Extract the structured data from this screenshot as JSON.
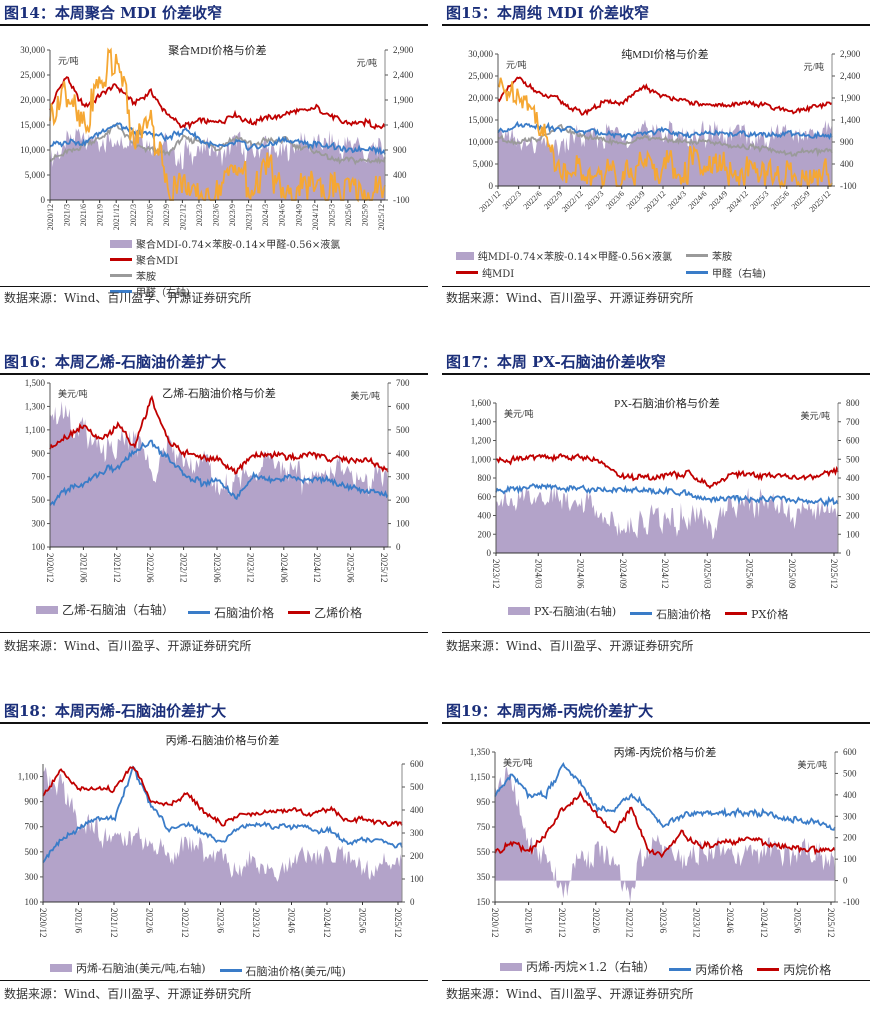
{
  "source_text": "数据来源：Wind、百川盈孚、开源证券研究所",
  "colors": {
    "area": "#b3a3c9",
    "red": "#c00000",
    "blue": "#3a7cc8",
    "gray": "#9a9a9a",
    "orange": "#f5a733",
    "title": "#1b2f7a"
  },
  "panels": [
    {
      "fig_title": "图14：本周聚合 MDI 价差收窄",
      "chart_data": {
        "type": "line",
        "title": "聚合MDI价格与价差",
        "left_unit": "元/吨",
        "right_unit": "元/吨",
        "left_ylim": [
          0,
          30000
        ],
        "left_ticks": [
          "0",
          "5,000",
          "10,000",
          "15,000",
          "20,000",
          "25,000",
          "30,000"
        ],
        "right_ylim": [
          -100,
          2900
        ],
        "right_ticks": [
          "-100",
          "400",
          "900",
          "1,400",
          "1,900",
          "2,400",
          "2,900"
        ],
        "x_ticks": [
          "2020/12",
          "2021/3",
          "2021/6",
          "2021/9",
          "2021/12",
          "2022/3",
          "2022/6",
          "2022/9",
          "2022/12",
          "2023/3",
          "2023/6",
          "2023/9",
          "2023/12",
          "2024/3",
          "2024/6",
          "2024/9",
          "2024/12",
          "2025/3",
          "2025/6",
          "2025/9",
          "2025/12"
        ],
        "x_tick_style": "vertical",
        "series": [
          {
            "name": "聚合MDI-0.74×苯胺-0.14×甲醛-0.56×液氯",
            "kind": "area",
            "axis": "left",
            "color": "#b3a3c9",
            "values": [
              9000,
              10500,
              13000,
              11000,
              12000,
              14000,
              12500,
              10500,
              9000,
              10000,
              9500,
              11000,
              9500,
              11500,
              10000,
              12000,
              11000,
              10500,
              11000,
              9500,
              8500
            ]
          },
          {
            "name": "聚合MDI",
            "kind": "line",
            "axis": "left",
            "color": "#c00000",
            "values": [
              18500,
              25000,
              18500,
              21000,
              23000,
              19500,
              21500,
              17000,
              14500,
              16000,
              15500,
              17000,
              15500,
              16500,
              17000,
              18000,
              18500,
              16500,
              15000,
              15500,
              14300
            ]
          },
          {
            "name": "苯胺",
            "kind": "line",
            "axis": "left",
            "color": "#9a9a9a",
            "values": [
              8500,
              9500,
              11000,
              12000,
              15000,
              11000,
              10000,
              9000,
              12500,
              11500,
              10000,
              12500,
              11000,
              12000,
              12000,
              10500,
              9500,
              8000,
              8000,
              8200,
              8000
            ]
          },
          {
            "name": "甲醛（右轴)",
            "kind": "line",
            "axis": "right",
            "color": "#3a7cc8",
            "values": [
              950,
              1100,
              1050,
              1250,
              1400,
              1250,
              1200,
              1150,
              1300,
              1100,
              950,
              1050,
              950,
              1000,
              1100,
              1050,
              1000,
              950,
              900,
              920,
              880
            ]
          },
          {
            "name": "液氯",
            "kind": "line",
            "axis": "right",
            "color": "#f5a733",
            "values": [
              1800,
              2000,
              1300,
              2200,
              2900,
              900,
              1500,
              300,
              100,
              100,
              80,
              600,
              100,
              600,
              150,
              150,
              100,
              50,
              50,
              50,
              150
            ],
            "in_legend": false
          }
        ],
        "legend_position": "bottom"
      }
    },
    {
      "fig_title": "图15：本周纯 MDI 价差收窄",
      "chart_data": {
        "type": "line",
        "title": "纯MDI价格与价差",
        "left_unit": "元/吨",
        "right_unit": "元/吨",
        "left_ylim": [
          0,
          30000
        ],
        "left_ticks": [
          "0",
          "5,000",
          "10,000",
          "15,000",
          "20,000",
          "25,000",
          "30,000"
        ],
        "right_ylim": [
          -100,
          2900
        ],
        "right_ticks": [
          "-100",
          "400",
          "900",
          "1,400",
          "1,900",
          "2,400",
          "2,900"
        ],
        "x_ticks": [
          "2021/12",
          "2022/3",
          "2022/6",
          "2022/9",
          "2022/12",
          "2023/3",
          "2023/6",
          "2023/9",
          "2023/12",
          "2024/3",
          "2024/6",
          "2024/9",
          "2024/12",
          "2025/3",
          "2025/6",
          "2025/9",
          "2025/12"
        ],
        "x_tick_style": "diagonal",
        "series": [
          {
            "name": "纯MDI-0.74×苯胺-0.14×甲醛-0.56×液氯",
            "kind": "area",
            "axis": "left",
            "color": "#b3a3c9",
            "values": [
              12000,
              9500,
              10500,
              10000,
              11000,
              12000,
              11500,
              13500,
              12000,
              12500,
              11500,
              12000,
              11000,
              11500,
              11000,
              12000,
              13000
            ]
          },
          {
            "name": "纯MDI",
            "kind": "line",
            "axis": "left",
            "color": "#c00000",
            "values": [
              19500,
              24500,
              21000,
              19500,
              16500,
              19000,
              19000,
              22500,
              20500,
              19000,
              18500,
              18500,
              19000,
              18000,
              17000,
              18000,
              18500
            ]
          },
          {
            "name": "苯胺",
            "kind": "line",
            "axis": "left",
            "color": "#9a9a9a",
            "values": [
              11000,
              10000,
              11000,
              13500,
              11000,
              10500,
              9500,
              11000,
              10500,
              10000,
              10500,
              9000,
              9000,
              8500,
              7500,
              7800,
              8000
            ]
          },
          {
            "name": "甲醛（右轴)",
            "kind": "line",
            "axis": "right",
            "color": "#3a7cc8",
            "values": [
              1100,
              1300,
              1250,
              1200,
              1150,
              1100,
              1050,
              1100,
              1150,
              1050,
              1100,
              1100,
              1100,
              1050,
              1100,
              1050,
              1000
            ]
          },
          {
            "name": "液氯",
            "kind": "line",
            "axis": "right",
            "color": "#f5a733",
            "values": [
              2100,
              1800,
              1300,
              200,
              150,
              150,
              150,
              500,
              300,
              400,
              300,
              250,
              200,
              50,
              50,
              50,
              200
            ],
            "in_legend": false
          }
        ],
        "legend_position": "bottom"
      }
    },
    {
      "fig_title": "图16：本周乙烯-石脑油价差扩大",
      "chart_data": {
        "type": "line",
        "title": "乙烯-石脑油价格与价差",
        "left_unit": "美元/吨",
        "right_unit": "美元/吨",
        "left_ylim": [
          100,
          1500
        ],
        "left_ticks": [
          "100",
          "300",
          "500",
          "700",
          "900",
          "1,100",
          "1,300",
          "1,500"
        ],
        "right_ylim": [
          0,
          700
        ],
        "right_ticks": [
          "0",
          "100",
          "200",
          "300",
          "400",
          "500",
          "600",
          "700"
        ],
        "x_ticks": [
          "2020/12",
          "2021/06",
          "2021/12",
          "2022/06",
          "2022/12",
          "2023/06",
          "2023/12",
          "2024/06",
          "2024/12",
          "2025/06",
          "2025/12"
        ],
        "x_tick_style": "vertical",
        "series": [
          {
            "name": "乙烯-石脑油（右轴）",
            "kind": "area",
            "axis": "right",
            "color": "#b3a3c9",
            "values": [
              600,
              550,
              480,
              450,
              400,
              500,
              300,
              450,
              350,
              380,
              250,
              300,
              320,
              350,
              350,
              300,
              330,
              350,
              300,
              280,
              250
            ]
          },
          {
            "name": "石脑油价格",
            "kind": "line",
            "axis": "left",
            "color": "#3a7cc8",
            "values": [
              450,
              600,
              650,
              750,
              780,
              900,
              1000,
              850,
              720,
              650,
              680,
              500,
              700,
              680,
              700,
              670,
              680,
              650,
              600,
              580,
              550
            ]
          },
          {
            "name": "乙烯价格",
            "kind": "line",
            "axis": "left",
            "color": "#c00000",
            "values": [
              950,
              1050,
              1150,
              1000,
              1150,
              950,
              1380,
              1000,
              900,
              880,
              850,
              720,
              880,
              900,
              870,
              880,
              880,
              850,
              850,
              820,
              740
            ]
          }
        ],
        "legend_position": "bottom"
      }
    },
    {
      "fig_title": "图17：本周 PX-石脑油价差收窄",
      "chart_data": {
        "type": "line",
        "title": "PX-石脑油价格与价差",
        "left_unit": "美元/吨",
        "right_unit": "美元/吨",
        "left_ylim": [
          0,
          1600
        ],
        "left_ticks": [
          "0",
          "200",
          "400",
          "600",
          "800",
          "1,000",
          "1,200",
          "1,400",
          "1,600"
        ],
        "right_ylim": [
          0,
          800
        ],
        "right_ticks": [
          "0",
          "100",
          "200",
          "300",
          "400",
          "500",
          "600",
          "700",
          "800"
        ],
        "x_ticks": [
          "2023/12",
          "2024/03",
          "2024/06",
          "2024/09",
          "2024/12",
          "2025/03",
          "2025/06",
          "2025/09",
          "2025/12"
        ],
        "x_tick_style": "vertical",
        "series": [
          {
            "name": "PX-石脑油(右轴)",
            "kind": "area",
            "axis": "right",
            "color": "#b3a3c9",
            "values": [
              290,
              280,
              300,
              290,
              290,
              200,
              160,
              160,
              180,
              180,
              150,
              250,
              280,
              270,
              200,
              230,
              260
            ]
          },
          {
            "name": "石脑油价格",
            "kind": "line",
            "axis": "left",
            "color": "#3a7cc8",
            "values": [
              650,
              690,
              700,
              700,
              690,
              660,
              680,
              660,
              650,
              640,
              560,
              580,
              570,
              580,
              560,
              560,
              540
            ]
          },
          {
            "name": "PX价格",
            "kind": "line",
            "axis": "left",
            "color": "#c00000",
            "values": [
              980,
              1000,
              1020,
              1030,
              1020,
              960,
              800,
              820,
              830,
              850,
              700,
              840,
              830,
              820,
              800,
              820,
              880
            ]
          }
        ],
        "legend_position": "bottom"
      }
    },
    {
      "fig_title": "图18：本周丙烯-石脑油价差扩大",
      "chart_data": {
        "type": "line",
        "title": "丙烯-石脑油价格与价差",
        "left_unit": "",
        "right_unit": "",
        "left_ylim": [
          100,
          1200
        ],
        "left_ticks": [
          "100",
          "300",
          "500",
          "700",
          "900",
          "1,100"
        ],
        "right_ylim": [
          0,
          600
        ],
        "right_ticks": [
          "0",
          "100",
          "200",
          "300",
          "400",
          "500",
          "600"
        ],
        "x_ticks": [
          "2020/12",
          "2021/6",
          "2021/12",
          "2022/6",
          "2022/12",
          "2023/6",
          "2023/12",
          "2024/6",
          "2024/12",
          "2025/6",
          "2025/12"
        ],
        "x_tick_style": "vertical",
        "series": [
          {
            "name": "丙烯-石脑油(美元/吨,右轴)",
            "kind": "area",
            "axis": "right",
            "color": "#b3a3c9",
            "values": [
              560,
              500,
              350,
              300,
              250,
              280,
              230,
              200,
              250,
              220,
              180,
              150,
              180,
              130,
              180,
              190,
              200,
              180,
              130,
              170,
              170
            ]
          },
          {
            "name": "石脑油价格(美元/吨)",
            "kind": "line",
            "axis": "left",
            "color": "#3a7cc8",
            "values": [
              420,
              600,
              680,
              780,
              750,
              1170,
              880,
              680,
              720,
              640,
              580,
              700,
              720,
              700,
              700,
              680,
              660,
              560,
              600,
              580,
              540
            ]
          },
          {
            "name": "丙烯价格",
            "kind": "line",
            "axis": "left",
            "color": "#c00000",
            "values": [
              950,
              1150,
              1000,
              1000,
              1000,
              1200,
              900,
              880,
              960,
              820,
              720,
              800,
              800,
              820,
              840,
              800,
              840,
              750,
              760,
              720,
              730
            ],
            "in_legend": false
          }
        ],
        "legend_position": "bottom"
      }
    },
    {
      "fig_title": "图19：本周丙烯-丙烷价差扩大",
      "chart_data": {
        "type": "line",
        "title": "丙烯-丙烷价格与价差",
        "left_unit": "美元/吨",
        "right_unit": "美元/吨",
        "left_ylim": [
          150,
          1350
        ],
        "left_ticks": [
          "150",
          "350",
          "550",
          "750",
          "950",
          "1,150",
          "1,350"
        ],
        "right_ylim": [
          -100,
          600
        ],
        "right_ticks": [
          "-100",
          "0",
          "100",
          "200",
          "300",
          "400",
          "500",
          "600"
        ],
        "x_ticks": [
          "2020/12",
          "2021/6",
          "2021/12",
          "2022/6",
          "2022/12",
          "2023/6",
          "2023/12",
          "2024/6",
          "2024/12",
          "2025/6",
          "2025/12"
        ],
        "x_tick_style": "vertical",
        "series": [
          {
            "name": "丙烯-丙烷×1.2（右轴）",
            "kind": "area",
            "axis": "right",
            "color": "#b3a3c9",
            "values": [
              400,
              480,
              200,
              100,
              -50,
              120,
              140,
              100,
              -80,
              180,
              170,
              60,
              150,
              130,
              130,
              140,
              130,
              110,
              120,
              130,
              40
            ]
          },
          {
            "name": "丙烯价格",
            "kind": "line",
            "axis": "left",
            "color": "#3a7cc8",
            "values": [
              1000,
              1180,
              1000,
              1000,
              1250,
              1100,
              900,
              880,
              1000,
              900,
              750,
              850,
              850,
              860,
              870,
              860,
              860,
              820,
              800,
              780,
              740
            ]
          },
          {
            "name": "丙烷价格",
            "kind": "line",
            "axis": "left",
            "color": "#c00000",
            "values": [
              550,
              620,
              560,
              700,
              900,
              1000,
              850,
              700,
              900,
              560,
              540,
              700,
              600,
              620,
              640,
              660,
              620,
              600,
              580,
              560,
              580
            ]
          }
        ],
        "legend_position": "bottom"
      }
    }
  ]
}
